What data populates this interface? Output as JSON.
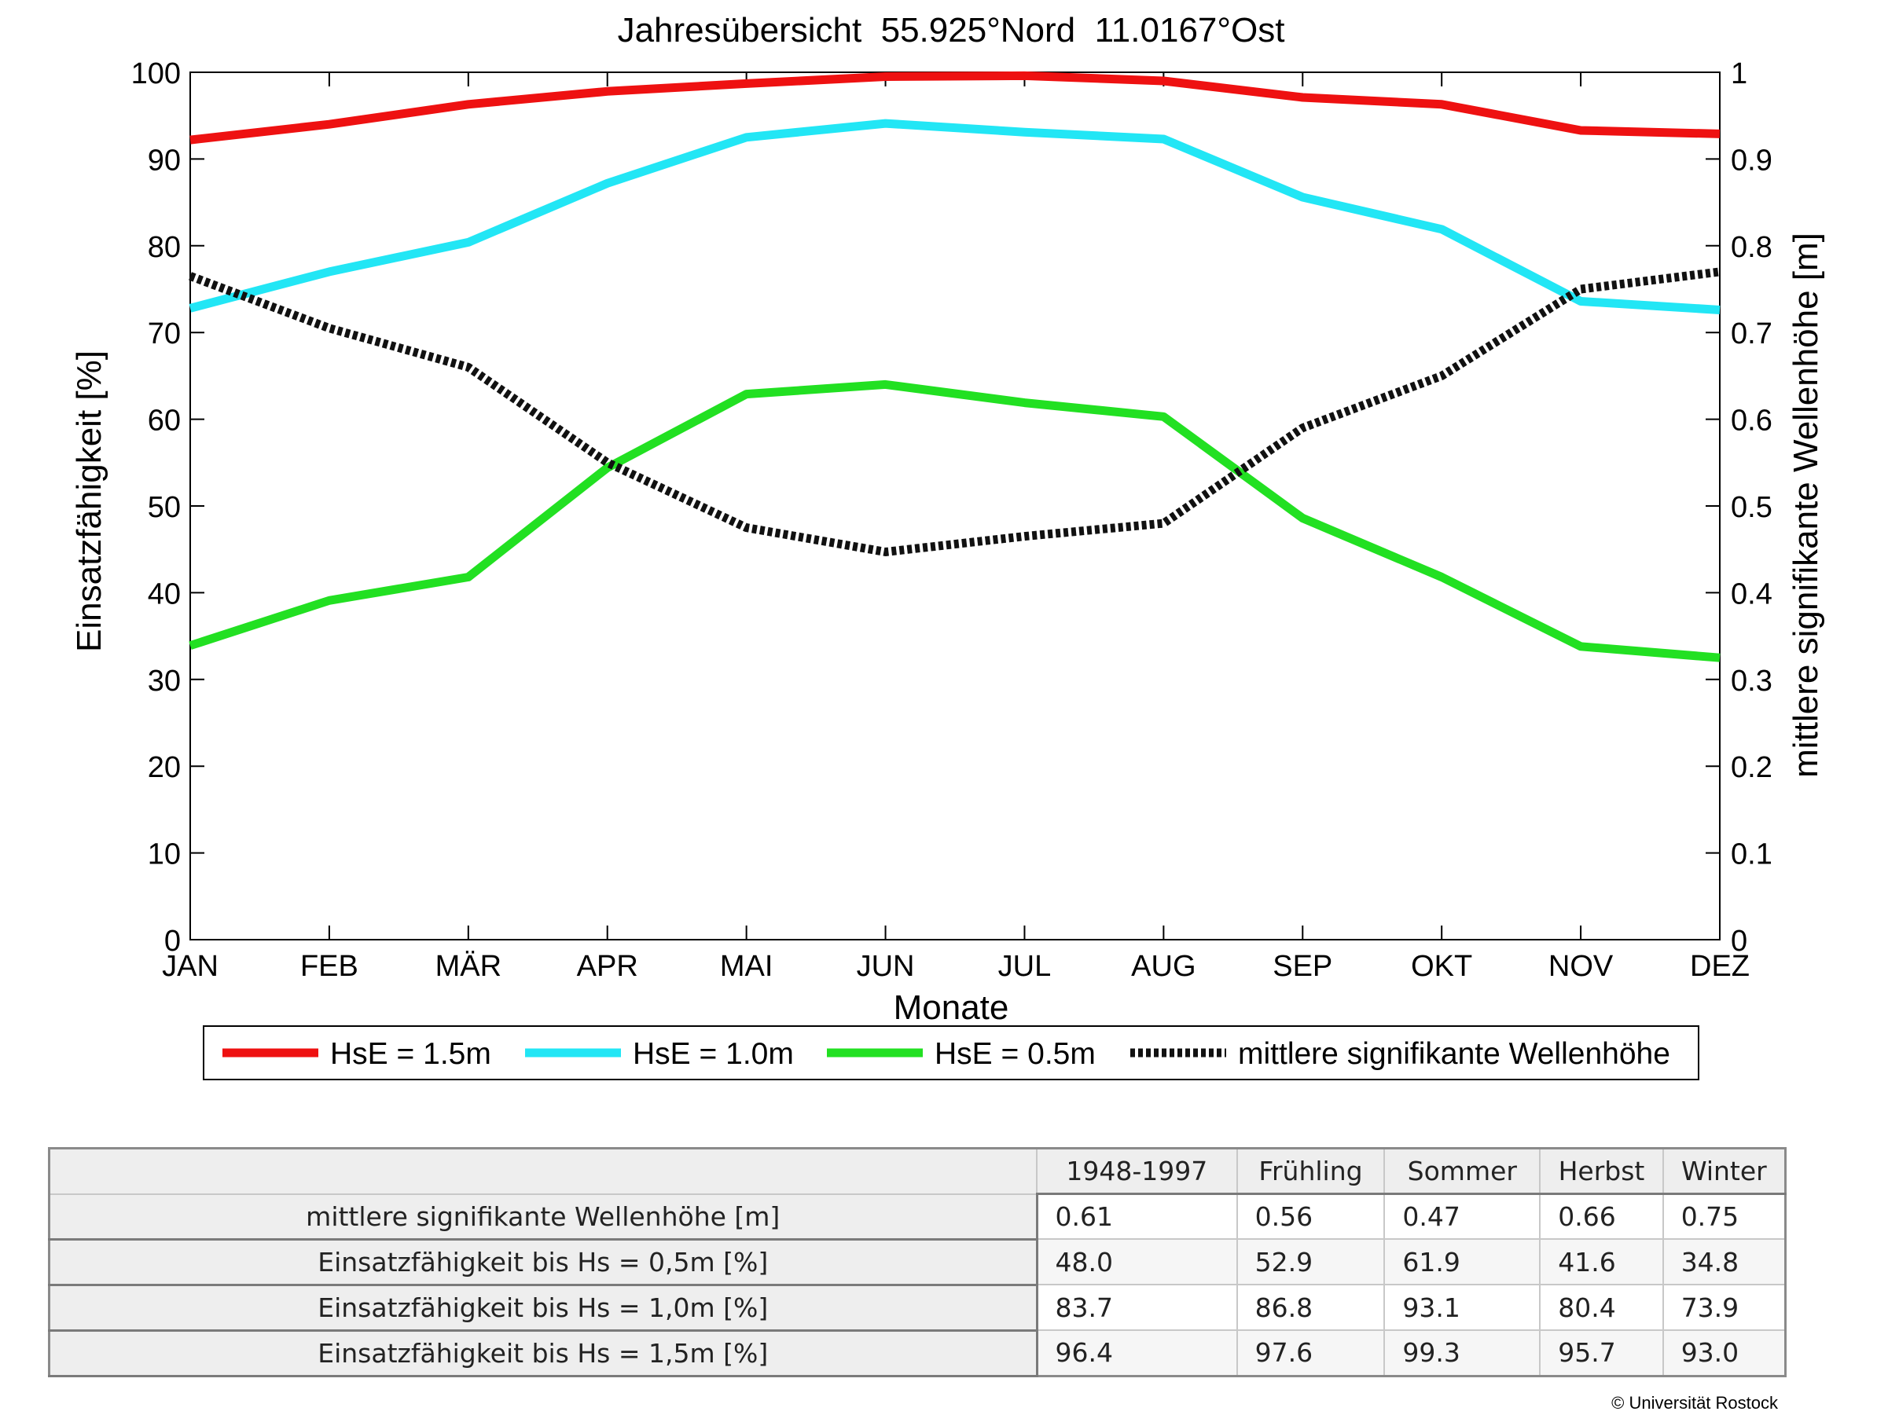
{
  "chart_data": {
    "type": "line",
    "title": "Jahresübersicht  55.925°Nord  11.0167°Ost",
    "xlabel": "Monate",
    "ylabel": "Einsatzfähigkeit [%]",
    "ylabel_right": "mittlere signifikante Wellenhöhe [m]",
    "categories": [
      "JAN",
      "FEB",
      "MÄR",
      "APR",
      "MAI",
      "JUN",
      "JUL",
      "AUG",
      "SEP",
      "OKT",
      "NOV",
      "DEZ"
    ],
    "ylim": [
      0,
      100
    ],
    "ylim_right": [
      0,
      1
    ],
    "y_ticks": [
      "0",
      "10",
      "20",
      "30",
      "40",
      "50",
      "60",
      "70",
      "80",
      "90",
      "100"
    ],
    "y_ticks_right": [
      "0",
      "0.1",
      "0.2",
      "0.3",
      "0.4",
      "0.5",
      "0.6",
      "0.7",
      "0.8",
      "0.9",
      "1"
    ],
    "grid": false,
    "legend_position": "bottom",
    "series": [
      {
        "name": "HsE = 1.5m",
        "color": "#ee1111",
        "axis": "left",
        "style": "solid",
        "values": [
          92.2,
          94.0,
          96.3,
          97.8,
          98.7,
          99.5,
          99.6,
          99.0,
          97.1,
          96.3,
          93.3,
          92.9
        ]
      },
      {
        "name": "HsE = 1.0m",
        "color": "#22e6f5",
        "axis": "left",
        "style": "solid",
        "values": [
          72.8,
          77.0,
          80.4,
          87.2,
          92.5,
          94.1,
          93.1,
          92.3,
          85.6,
          81.9,
          73.6,
          72.6
        ]
      },
      {
        "name": "HsE = 0.5m",
        "color": "#22e022",
        "axis": "left",
        "style": "solid",
        "values": [
          33.9,
          39.1,
          41.8,
          54.4,
          62.9,
          64.0,
          61.9,
          60.3,
          48.6,
          41.8,
          33.8,
          32.5
        ]
      },
      {
        "name": "mittlere signifikante Wellenhöhe",
        "color": "#111111",
        "axis": "right",
        "style": "dotted",
        "values": [
          0.765,
          0.705,
          0.66,
          0.55,
          0.475,
          0.447,
          0.465,
          0.48,
          0.59,
          0.65,
          0.75,
          0.77
        ]
      }
    ]
  },
  "table": {
    "columns": [
      "1948-1997",
      "Frühling",
      "Sommer",
      "Herbst",
      "Winter"
    ],
    "rows": [
      {
        "label": "mittlere signifikante Wellenhöhe [m]",
        "values": [
          "0.61",
          "0.56",
          "0.47",
          "0.66",
          "0.75"
        ]
      },
      {
        "label": "Einsatzfähigkeit bis Hs = 0,5m [%]",
        "values": [
          "48.0",
          "52.9",
          "61.9",
          "41.6",
          "34.8"
        ]
      },
      {
        "label": "Einsatzfähigkeit bis Hs = 1,0m [%]",
        "values": [
          "83.7",
          "86.8",
          "93.1",
          "80.4",
          "73.9"
        ]
      },
      {
        "label": "Einsatzfähigkeit bis Hs = 1,5m [%]",
        "values": [
          "96.4",
          "97.6",
          "99.3",
          "95.7",
          "93.0"
        ]
      }
    ]
  },
  "copyright": "© Universität Rostock"
}
